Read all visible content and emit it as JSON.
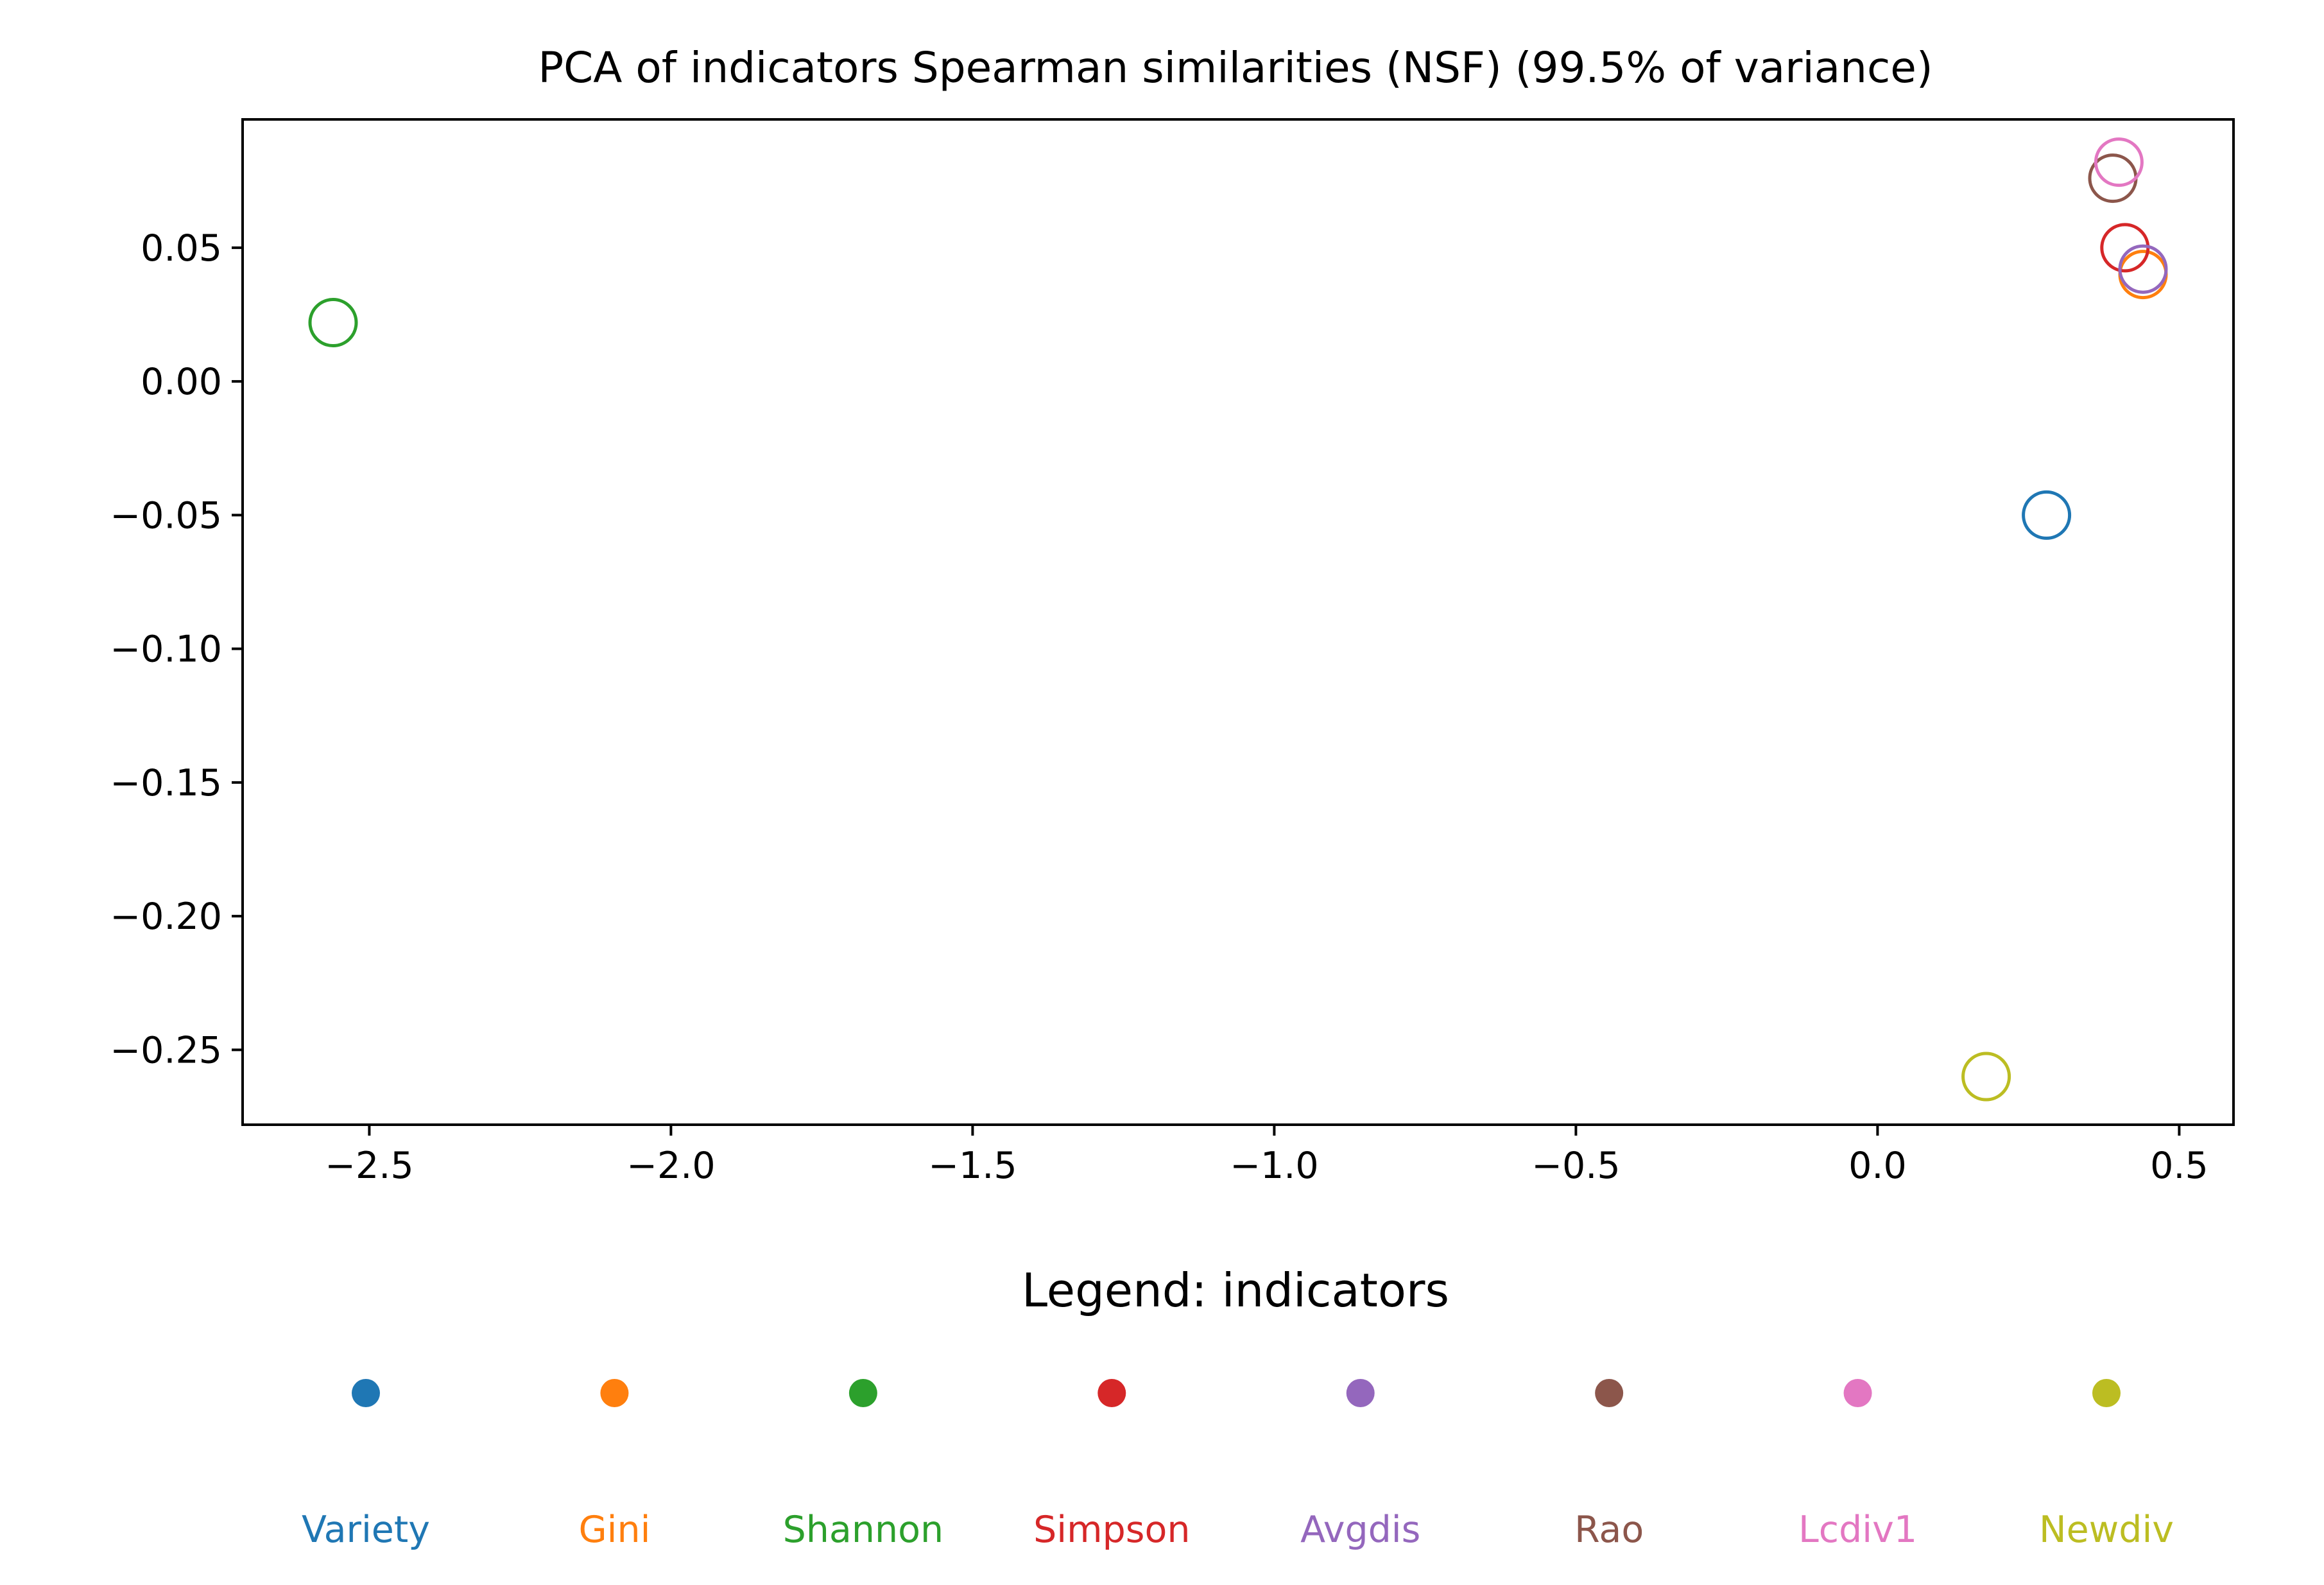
{
  "chart_data": {
    "type": "scatter",
    "title": "PCA of indicators Spearman similarities (NSF) (99.5% of variance)",
    "xlabel": "",
    "ylabel": "",
    "xlim": [
      -2.71,
      0.59
    ],
    "ylim": [
      -0.278,
      0.098
    ],
    "grid": false,
    "x_ticks": [
      {
        "value": -2.5,
        "label": "−2.5"
      },
      {
        "value": -2.0,
        "label": "−2.0"
      },
      {
        "value": -1.5,
        "label": "−1.5"
      },
      {
        "value": -1.0,
        "label": "−1.0"
      },
      {
        "value": -0.5,
        "label": "−0.5"
      },
      {
        "value": 0.0,
        "label": "0.0"
      },
      {
        "value": 0.5,
        "label": "0.5"
      }
    ],
    "y_ticks": [
      {
        "value": 0.05,
        "label": "0.05"
      },
      {
        "value": 0.0,
        "label": "0.00"
      },
      {
        "value": -0.05,
        "label": "−0.05"
      },
      {
        "value": -0.1,
        "label": "−0.10"
      },
      {
        "value": -0.15,
        "label": "−0.15"
      },
      {
        "value": -0.2,
        "label": "−0.20"
      },
      {
        "value": -0.25,
        "label": "−0.25"
      }
    ],
    "legend_title": "Legend: indicators",
    "legend_placement": "below",
    "marker": "hollow-circle",
    "series": [
      {
        "name": "Variety",
        "color": "#1f77b4",
        "x": 0.28,
        "y": -0.05
      },
      {
        "name": "Gini",
        "color": "#ff7f0e",
        "x": 0.44,
        "y": 0.04
      },
      {
        "name": "Shannon",
        "color": "#2ca02c",
        "x": -2.56,
        "y": 0.022
      },
      {
        "name": "Simpson",
        "color": "#d62728",
        "x": 0.41,
        "y": 0.05
      },
      {
        "name": "Avgdis",
        "color": "#9467bd",
        "x": 0.44,
        "y": 0.042
      },
      {
        "name": "Rao",
        "color": "#8c564b",
        "x": 0.39,
        "y": 0.076
      },
      {
        "name": "Lcdiv1",
        "color": "#e377c2",
        "x": 0.4,
        "y": 0.082
      },
      {
        "name": "Newdiv",
        "color": "#bcbd22",
        "x": 0.18,
        "y": -0.26
      }
    ]
  }
}
